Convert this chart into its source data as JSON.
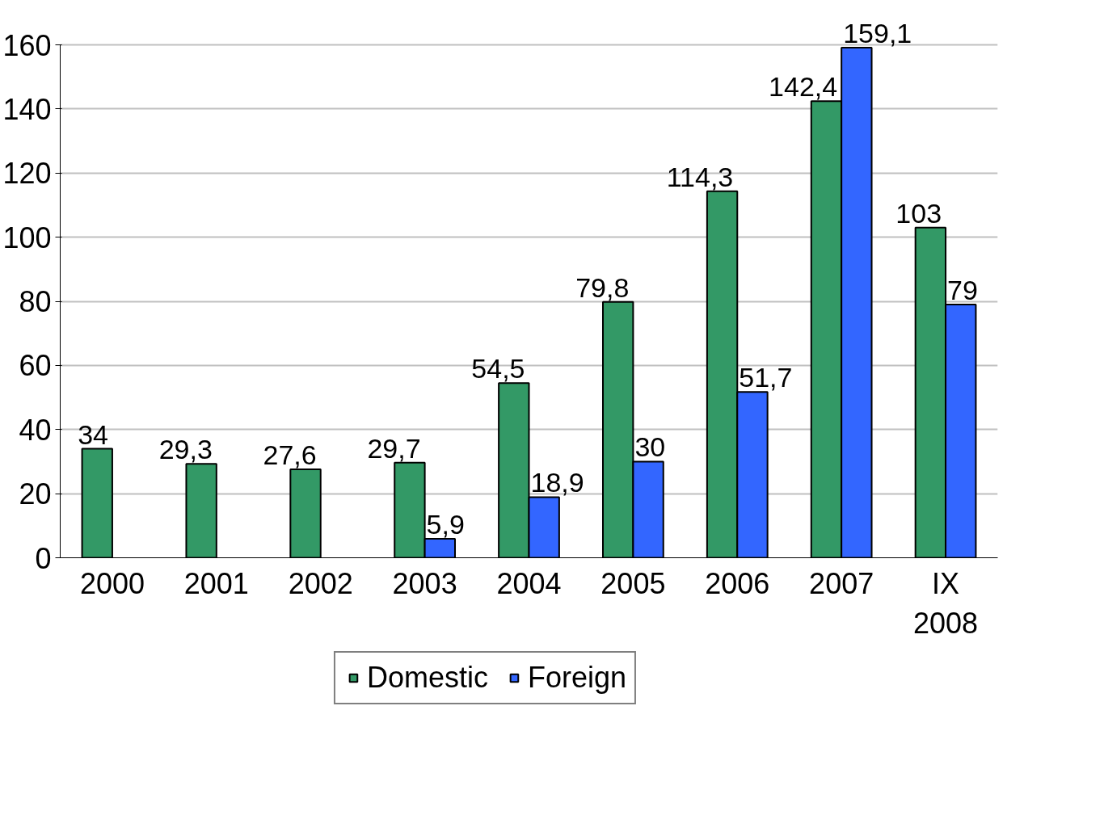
{
  "chart_data": {
    "type": "bar",
    "categories": [
      "2000",
      "2001",
      "2002",
      "2003",
      "2004",
      "2005",
      "2006",
      "2007",
      "IX\n2008"
    ],
    "series": [
      {
        "name": "Domestic",
        "color": "#339966",
        "values": [
          34,
          29.3,
          27.6,
          29.7,
          54.5,
          79.8,
          114.3,
          142.4,
          103
        ],
        "value_labels": [
          "34",
          "29,3",
          "27,6",
          "29,7",
          "54,5",
          "79,8",
          "114,3",
          "142,4",
          "103"
        ]
      },
      {
        "name": "Foreign",
        "color": "#3366ff",
        "values": [
          null,
          null,
          null,
          5.9,
          18.9,
          30,
          51.7,
          159.1,
          79
        ],
        "value_labels": [
          null,
          null,
          null,
          "5,9",
          "18,9",
          "30",
          "51,7",
          "159,1",
          "79"
        ]
      }
    ],
    "ylim": [
      0,
      160
    ],
    "yticks": [
      0,
      20,
      40,
      60,
      80,
      100,
      120,
      140,
      160
    ],
    "grid": "y",
    "legend": "bottom"
  }
}
